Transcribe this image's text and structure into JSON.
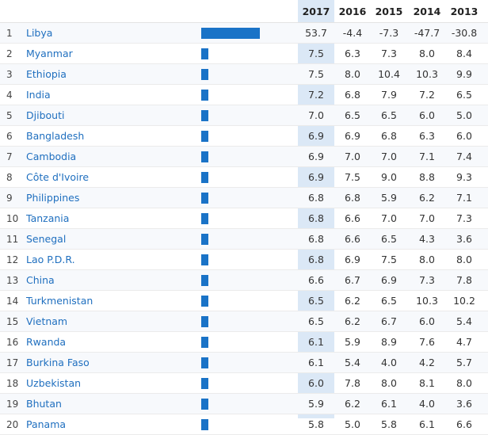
{
  "columns": {
    "y2017": "2017",
    "y2016": "2016",
    "y2015": "2015",
    "y2014": "2014",
    "y2013": "2013"
  },
  "bar_scale_max": 53.7,
  "accent_color": "#1a73c7",
  "rows": [
    {
      "rank": "1",
      "country": "Libya",
      "y2017": "53.7",
      "y2016": "-4.4",
      "y2015": "-7.3",
      "y2014": "-47.7",
      "y2013": "-30.8",
      "bar": 53.7
    },
    {
      "rank": "2",
      "country": "Myanmar",
      "y2017": "7.5",
      "y2016": "6.3",
      "y2015": "7.3",
      "y2014": "8.0",
      "y2013": "8.4",
      "bar": 7.5
    },
    {
      "rank": "3",
      "country": "Ethiopia",
      "y2017": "7.5",
      "y2016": "8.0",
      "y2015": "10.4",
      "y2014": "10.3",
      "y2013": "9.9",
      "bar": 7.5
    },
    {
      "rank": "4",
      "country": "India",
      "y2017": "7.2",
      "y2016": "6.8",
      "y2015": "7.9",
      "y2014": "7.2",
      "y2013": "6.5",
      "bar": 7.2
    },
    {
      "rank": "5",
      "country": "Djibouti",
      "y2017": "7.0",
      "y2016": "6.5",
      "y2015": "6.5",
      "y2014": "6.0",
      "y2013": "5.0",
      "bar": 7.0
    },
    {
      "rank": "6",
      "country": "Bangladesh",
      "y2017": "6.9",
      "y2016": "6.9",
      "y2015": "6.8",
      "y2014": "6.3",
      "y2013": "6.0",
      "bar": 6.9
    },
    {
      "rank": "7",
      "country": "Cambodia",
      "y2017": "6.9",
      "y2016": "7.0",
      "y2015": "7.0",
      "y2014": "7.1",
      "y2013": "7.4",
      "bar": 6.9
    },
    {
      "rank": "8",
      "country": "Côte d'Ivoire",
      "y2017": "6.9",
      "y2016": "7.5",
      "y2015": "9.0",
      "y2014": "8.8",
      "y2013": "9.3",
      "bar": 6.9
    },
    {
      "rank": "9",
      "country": "Philippines",
      "y2017": "6.8",
      "y2016": "6.8",
      "y2015": "5.9",
      "y2014": "6.2",
      "y2013": "7.1",
      "bar": 6.8
    },
    {
      "rank": "10",
      "country": "Tanzania",
      "y2017": "6.8",
      "y2016": "6.6",
      "y2015": "7.0",
      "y2014": "7.0",
      "y2013": "7.3",
      "bar": 6.8
    },
    {
      "rank": "11",
      "country": "Senegal",
      "y2017": "6.8",
      "y2016": "6.6",
      "y2015": "6.5",
      "y2014": "4.3",
      "y2013": "3.6",
      "bar": 6.8
    },
    {
      "rank": "12",
      "country": "Lao P.D.R.",
      "y2017": "6.8",
      "y2016": "6.9",
      "y2015": "7.5",
      "y2014": "8.0",
      "y2013": "8.0",
      "bar": 6.8
    },
    {
      "rank": "13",
      "country": "China",
      "y2017": "6.6",
      "y2016": "6.7",
      "y2015": "6.9",
      "y2014": "7.3",
      "y2013": "7.8",
      "bar": 6.6
    },
    {
      "rank": "14",
      "country": "Turkmenistan",
      "y2017": "6.5",
      "y2016": "6.2",
      "y2015": "6.5",
      "y2014": "10.3",
      "y2013": "10.2",
      "bar": 6.5
    },
    {
      "rank": "15",
      "country": "Vietnam",
      "y2017": "6.5",
      "y2016": "6.2",
      "y2015": "6.7",
      "y2014": "6.0",
      "y2013": "5.4",
      "bar": 6.5
    },
    {
      "rank": "16",
      "country": "Rwanda",
      "y2017": "6.1",
      "y2016": "5.9",
      "y2015": "8.9",
      "y2014": "7.6",
      "y2013": "4.7",
      "bar": 6.1
    },
    {
      "rank": "17",
      "country": "Burkina Faso",
      "y2017": "6.1",
      "y2016": "5.4",
      "y2015": "4.0",
      "y2014": "4.2",
      "y2013": "5.7",
      "bar": 6.1
    },
    {
      "rank": "18",
      "country": "Uzbekistan",
      "y2017": "6.0",
      "y2016": "7.8",
      "y2015": "8.0",
      "y2014": "8.1",
      "y2013": "8.0",
      "bar": 6.0
    },
    {
      "rank": "19",
      "country": "Bhutan",
      "y2017": "5.9",
      "y2016": "6.2",
      "y2015": "6.1",
      "y2014": "4.0",
      "y2013": "3.6",
      "bar": 5.9
    },
    {
      "rank": "20",
      "country": "Panama",
      "y2017": "5.8",
      "y2016": "5.0",
      "y2015": "5.8",
      "y2014": "6.1",
      "y2013": "6.6",
      "bar": 5.8
    }
  ]
}
